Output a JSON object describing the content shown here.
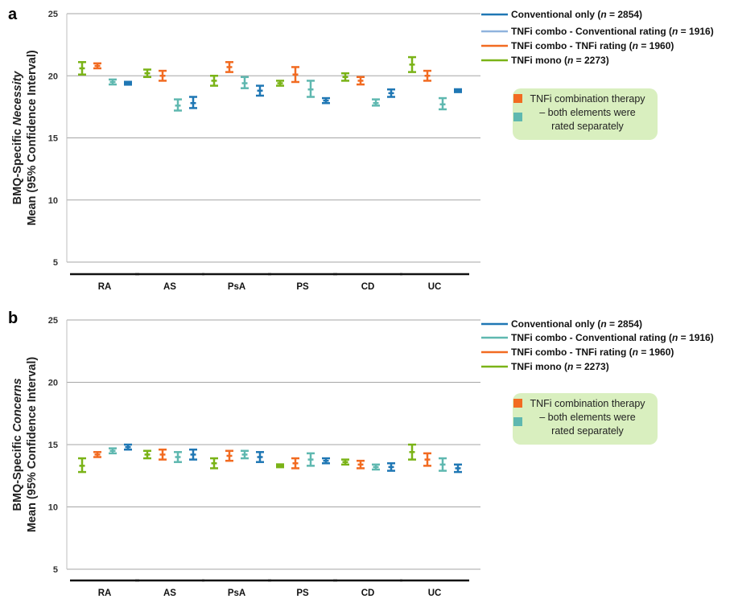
{
  "colors": {
    "conventional": "#1f77b4",
    "tnfi_combo_conventional_a": "#8fb3dd",
    "tnfi_combo_conventional_b": "#5fb8b0",
    "tnfi_combo_tnfi": "#f26b21",
    "tnfi_mono": "#7ab317",
    "note_box": "#d9efbf",
    "note_orange": "#f26b21",
    "note_teal": "#5fb8b0",
    "grid": "#a6a6a6"
  },
  "chart_data": [
    {
      "type": "errorbar",
      "panel_label": "a",
      "ylabel_prefix": "BMQ-Specific ",
      "ylabel_italic": "Necessity",
      "ylabel_line2": "Mean (95% Confidence Interval)",
      "ylim": [
        5,
        25
      ],
      "yticks": [
        "5",
        "10",
        "15",
        "20",
        "25"
      ],
      "grid": true,
      "categories": [
        "RA",
        "AS",
        "PsA",
        "PS",
        "CD",
        "UC"
      ],
      "legend": [
        {
          "prefix": "Conventional only (",
          "n": "n",
          "suffix": " = 2854)",
          "color": "#1f77b4"
        },
        {
          "prefix": "TNFi combo - Conventional rating (",
          "n": "n",
          "suffix": " = 1916)",
          "color": "#8fb3dd"
        },
        {
          "prefix": "TNFi combo - TNFi rating (",
          "n": "n",
          "suffix": " = 1960)",
          "color": "#f26b21"
        },
        {
          "prefix": "TNFi mono (",
          "n": "n",
          "suffix": " = 2273)",
          "color": "#7ab317"
        }
      ],
      "note": [
        "TNFi combination therapy",
        "– both elements were",
        "rated separately"
      ],
      "series": [
        {
          "name": "TNFi mono",
          "color": "#7ab317",
          "values": [
            [
              20.6,
              20.1,
              21.1
            ],
            [
              20.2,
              19.9,
              20.5
            ],
            [
              19.6,
              19.2,
              20.0
            ],
            [
              19.4,
              19.2,
              19.6
            ],
            [
              19.9,
              19.6,
              20.2
            ],
            [
              20.9,
              20.3,
              21.5
            ]
          ]
        },
        {
          "name": "TNFi combo - TNFi rating",
          "color": "#f26b21",
          "values": [
            [
              20.8,
              20.6,
              21.0
            ],
            [
              20.0,
              19.6,
              20.4
            ],
            [
              20.7,
              20.3,
              21.1
            ],
            [
              20.1,
              19.5,
              20.7
            ],
            [
              19.6,
              19.3,
              19.9
            ],
            [
              20.0,
              19.6,
              20.4
            ]
          ]
        },
        {
          "name": "TNFi combo - Conventional rating",
          "color": "#5fb8b0",
          "values": [
            [
              19.5,
              19.3,
              19.7
            ],
            [
              17.6,
              17.2,
              18.1
            ],
            [
              19.4,
              19.0,
              19.9
            ],
            [
              18.9,
              18.3,
              19.6
            ],
            [
              17.8,
              17.6,
              18.1
            ],
            [
              17.7,
              17.3,
              18.2
            ]
          ]
        },
        {
          "name": "Conventional only",
          "color": "#1f77b4",
          "values": [
            [
              19.4,
              19.3,
              19.5
            ],
            [
              17.8,
              17.4,
              18.3
            ],
            [
              18.8,
              18.4,
              19.2
            ],
            [
              18.0,
              17.8,
              18.2
            ],
            [
              18.6,
              18.3,
              18.9
            ],
            [
              18.8,
              18.7,
              18.9
            ]
          ]
        }
      ]
    },
    {
      "type": "errorbar",
      "panel_label": "b",
      "ylabel_prefix": "BMQ-Specific ",
      "ylabel_italic": "Concerns",
      "ylabel_line2": "Mean (95% Confidence Interval)",
      "ylim": [
        5,
        25
      ],
      "yticks": [
        "5",
        "10",
        "15",
        "20",
        "25"
      ],
      "grid": true,
      "categories": [
        "RA",
        "AS",
        "PsA",
        "PS",
        "CD",
        "UC"
      ],
      "legend": [
        {
          "prefix": "Conventional only (",
          "n": "n",
          "suffix": " = 2854)",
          "color": "#1f77b4"
        },
        {
          "prefix": "TNFi combo - Conventional rating (",
          "n": "n",
          "suffix": " = 1916)",
          "color": "#5fb8b0"
        },
        {
          "prefix": "TNFi combo - TNFi rating (",
          "n": "n",
          "suffix": " = 1960)",
          "color": "#f26b21"
        },
        {
          "prefix": "TNFi mono (",
          "n": "n",
          "suffix": " = 2273)",
          "color": "#7ab317"
        }
      ],
      "note": [
        "TNFi combination therapy",
        "– both elements were",
        "rated separately"
      ],
      "series": [
        {
          "name": "TNFi mono",
          "color": "#7ab317",
          "values": [
            [
              13.3,
              12.8,
              13.9
            ],
            [
              14.2,
              13.9,
              14.5
            ],
            [
              13.5,
              13.1,
              13.9
            ],
            [
              13.3,
              13.2,
              13.4
            ],
            [
              13.6,
              13.4,
              13.8
            ],
            [
              14.4,
              13.8,
              15.0
            ]
          ]
        },
        {
          "name": "TNFi combo - TNFi rating",
          "color": "#f26b21",
          "values": [
            [
              14.2,
              14.0,
              14.4
            ],
            [
              14.2,
              13.8,
              14.6
            ],
            [
              14.1,
              13.7,
              14.5
            ],
            [
              13.5,
              13.1,
              13.9
            ],
            [
              13.4,
              13.1,
              13.7
            ],
            [
              13.8,
              13.3,
              14.3
            ]
          ]
        },
        {
          "name": "TNFi combo - Conventional rating",
          "color": "#5fb8b0",
          "values": [
            [
              14.5,
              14.3,
              14.7
            ],
            [
              14.0,
              13.6,
              14.4
            ],
            [
              14.2,
              13.9,
              14.5
            ],
            [
              13.8,
              13.3,
              14.3
            ],
            [
              13.2,
              13.0,
              13.4
            ],
            [
              13.4,
              12.9,
              13.9
            ]
          ]
        },
        {
          "name": "Conventional only",
          "color": "#1f77b4",
          "values": [
            [
              14.8,
              14.6,
              15.0
            ],
            [
              14.2,
              13.8,
              14.6
            ],
            [
              14.0,
              13.6,
              14.4
            ],
            [
              13.7,
              13.5,
              13.9
            ],
            [
              13.2,
              12.9,
              13.5
            ],
            [
              13.1,
              12.8,
              13.4
            ]
          ]
        }
      ]
    }
  ]
}
